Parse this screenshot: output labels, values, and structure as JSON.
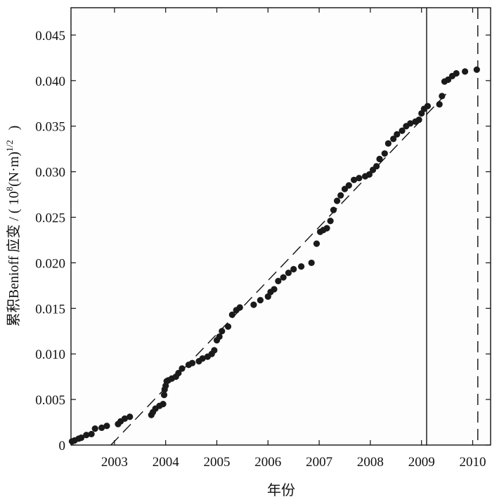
{
  "chart_data": {
    "type": "scatter",
    "xlabel": "年份",
    "ylabel": "累积Benioff 应变 / (10⁸(N·m)^1/2)",
    "ylabel_parts": {
      "prefix": "累积Benioff 应变 / ( 10",
      "exp1": "8",
      "middle": "(N·m)",
      "exp2": "1/2",
      "suffix": ")"
    },
    "xlim": [
      2002.15,
      2010.35
    ],
    "ylim": [
      0,
      0.048
    ],
    "x_ticks": [
      {
        "value": 2003,
        "label": "2003"
      },
      {
        "value": 2004,
        "label": "2004"
      },
      {
        "value": 2005,
        "label": "2005"
      },
      {
        "value": 2006,
        "label": "2006"
      },
      {
        "value": 2007,
        "label": "2007"
      },
      {
        "value": 2008,
        "label": "2008"
      },
      {
        "value": 2009,
        "label": "2009"
      },
      {
        "value": 2010,
        "label": "2010"
      }
    ],
    "y_ticks": [
      {
        "value": 0,
        "label": "0"
      },
      {
        "value": 0.005,
        "label": "0.005"
      },
      {
        "value": 0.01,
        "label": "0.010"
      },
      {
        "value": 0.015,
        "label": "0.015"
      },
      {
        "value": 0.02,
        "label": "0.020"
      },
      {
        "value": 0.025,
        "label": "0.025"
      },
      {
        "value": 0.03,
        "label": "0.030"
      },
      {
        "value": 0.035,
        "label": "0.035"
      },
      {
        "value": 0.04,
        "label": "0.040"
      },
      {
        "value": 0.045,
        "label": "0.045"
      }
    ],
    "points": [
      [
        2002.17,
        0.0004
      ],
      [
        2002.22,
        0.0005
      ],
      [
        2002.3,
        0.0007
      ],
      [
        2002.35,
        0.0008
      ],
      [
        2002.45,
        0.0011
      ],
      [
        2002.55,
        0.0012
      ],
      [
        2002.62,
        0.0018
      ],
      [
        2002.75,
        0.0019
      ],
      [
        2002.85,
        0.0021
      ],
      [
        2003.07,
        0.0023
      ],
      [
        2003.12,
        0.0026
      ],
      [
        2003.2,
        0.0029
      ],
      [
        2003.3,
        0.0031
      ],
      [
        2003.72,
        0.0033
      ],
      [
        2003.75,
        0.0036
      ],
      [
        2003.8,
        0.004
      ],
      [
        2003.88,
        0.0043
      ],
      [
        2003.95,
        0.0045
      ],
      [
        2003.97,
        0.0055
      ],
      [
        2003.98,
        0.0061
      ],
      [
        2004.0,
        0.0065
      ],
      [
        2004.02,
        0.007
      ],
      [
        2004.05,
        0.0071
      ],
      [
        2004.12,
        0.0073
      ],
      [
        2004.2,
        0.0075
      ],
      [
        2004.25,
        0.0079
      ],
      [
        2004.32,
        0.0084
      ],
      [
        2004.45,
        0.0088
      ],
      [
        2004.52,
        0.009
      ],
      [
        2004.65,
        0.0092
      ],
      [
        2004.72,
        0.0095
      ],
      [
        2004.82,
        0.0097
      ],
      [
        2004.9,
        0.01
      ],
      [
        2004.95,
        0.0104
      ],
      [
        2005.0,
        0.0115
      ],
      [
        2005.05,
        0.0119
      ],
      [
        2005.1,
        0.0125
      ],
      [
        2005.22,
        0.013
      ],
      [
        2005.3,
        0.0143
      ],
      [
        2005.38,
        0.0148
      ],
      [
        2005.45,
        0.0151
      ],
      [
        2005.72,
        0.0154
      ],
      [
        2005.85,
        0.0159
      ],
      [
        2006.0,
        0.0163
      ],
      [
        2006.05,
        0.0168
      ],
      [
        2006.12,
        0.0171
      ],
      [
        2006.2,
        0.018
      ],
      [
        2006.3,
        0.0184
      ],
      [
        2006.4,
        0.0189
      ],
      [
        2006.5,
        0.0193
      ],
      [
        2006.65,
        0.0196
      ],
      [
        2006.85,
        0.02
      ],
      [
        2006.95,
        0.0221
      ],
      [
        2007.02,
        0.0234
      ],
      [
        2007.08,
        0.0236
      ],
      [
        2007.15,
        0.0238
      ],
      [
        2007.22,
        0.0246
      ],
      [
        2007.28,
        0.0258
      ],
      [
        2007.35,
        0.0268
      ],
      [
        2007.42,
        0.0274
      ],
      [
        2007.5,
        0.0281
      ],
      [
        2007.58,
        0.0285
      ],
      [
        2007.68,
        0.0291
      ],
      [
        2007.78,
        0.0293
      ],
      [
        2007.9,
        0.0295
      ],
      [
        2007.98,
        0.0297
      ],
      [
        2008.05,
        0.0302
      ],
      [
        2008.12,
        0.0306
      ],
      [
        2008.18,
        0.0314
      ],
      [
        2008.28,
        0.032
      ],
      [
        2008.35,
        0.0331
      ],
      [
        2008.45,
        0.0336
      ],
      [
        2008.52,
        0.0341
      ],
      [
        2008.62,
        0.0345
      ],
      [
        2008.7,
        0.035
      ],
      [
        2008.78,
        0.0353
      ],
      [
        2008.88,
        0.0355
      ],
      [
        2008.95,
        0.0357
      ],
      [
        2009.0,
        0.0364
      ],
      [
        2009.05,
        0.0369
      ],
      [
        2009.12,
        0.0372
      ],
      [
        2009.35,
        0.0374
      ],
      [
        2009.4,
        0.0383
      ],
      [
        2009.45,
        0.0399
      ],
      [
        2009.52,
        0.0401
      ],
      [
        2009.6,
        0.0405
      ],
      [
        2009.68,
        0.0408
      ],
      [
        2009.85,
        0.041
      ],
      [
        2010.08,
        0.0412
      ]
    ],
    "trend_line": {
      "style": "dashed",
      "x": [
        2002.93,
        2009.56
      ],
      "y": [
        0.0,
        0.039
      ]
    },
    "vertical_lines": [
      {
        "x": 2009.1,
        "style": "solid"
      },
      {
        "x": 2010.1,
        "style": "dashed"
      }
    ],
    "colors": {
      "points": "#1a1a1a",
      "axes": "#111111"
    }
  }
}
